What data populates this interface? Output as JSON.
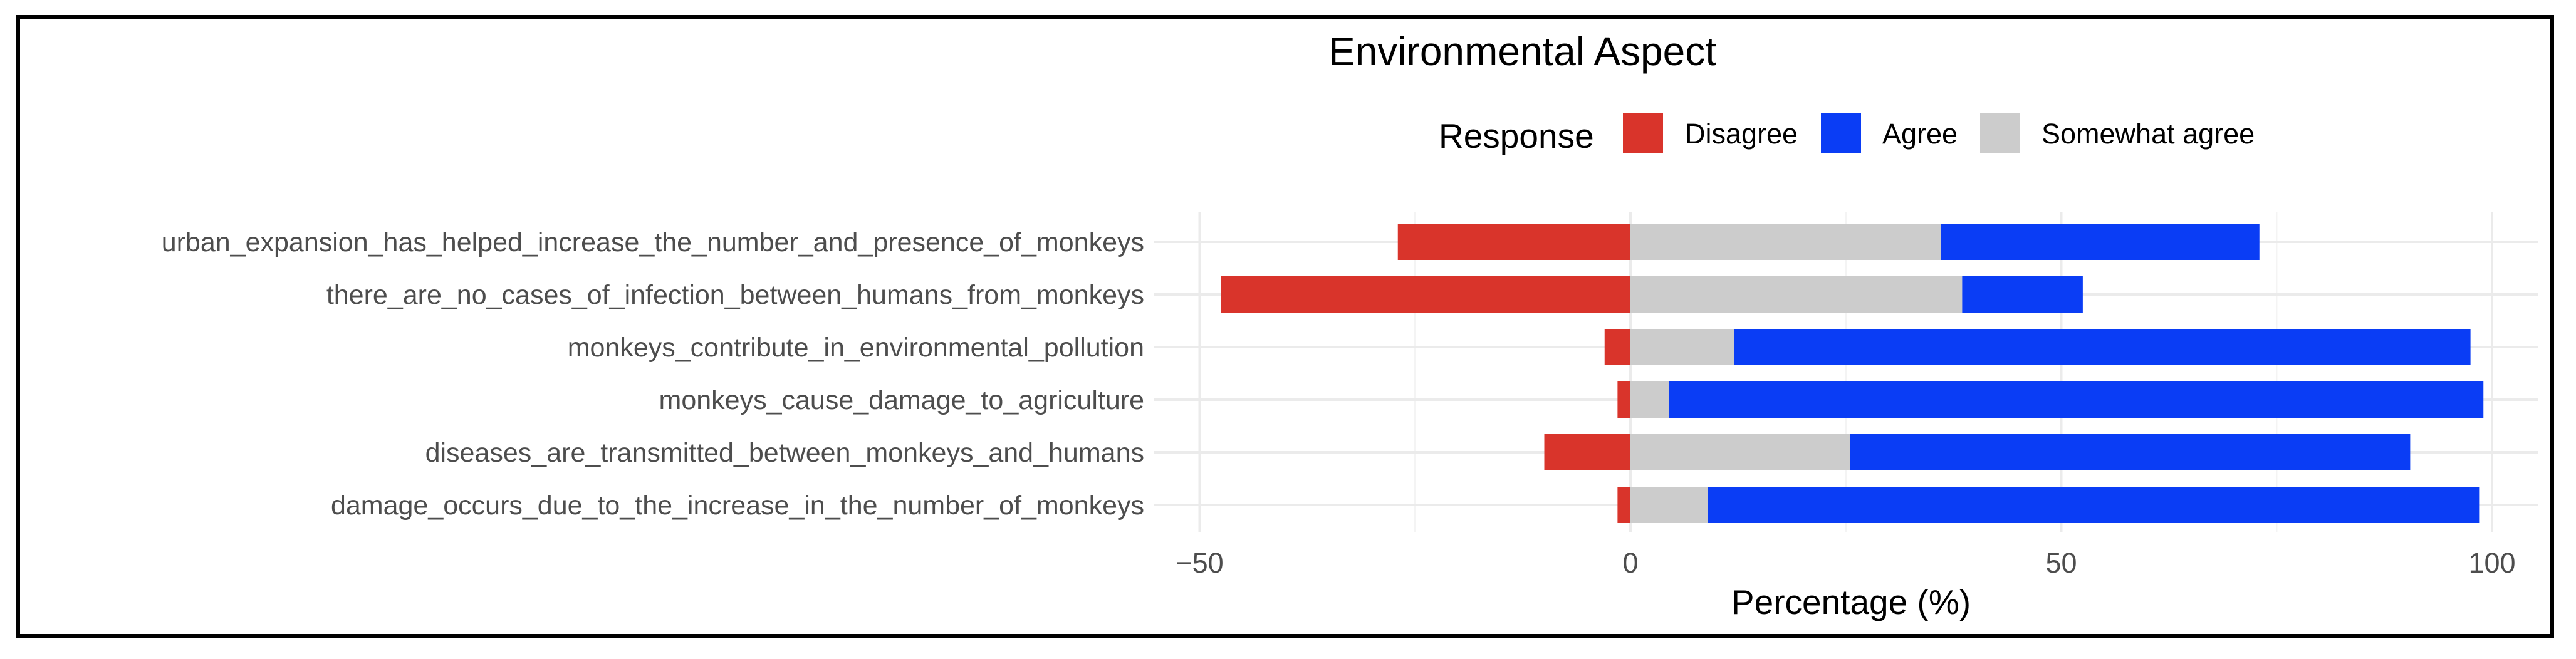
{
  "chart_data": {
    "type": "bar",
    "orientation": "horizontal",
    "stacked": "diverging",
    "title": "Environmental Aspect",
    "xlabel": "Percentage (%)",
    "ylabel": "",
    "xlim": [
      -50,
      100
    ],
    "x_ticks": [
      -50,
      0,
      50,
      100
    ],
    "x_tick_labels": [
      "−50",
      "0",
      "50",
      "100"
    ],
    "grid": true,
    "legend": {
      "title": "Response",
      "position": "top",
      "entries": [
        {
          "label": "Disagree",
          "color": "#d9342b"
        },
        {
          "label": "Agree",
          "color": "#0a3df5"
        },
        {
          "label": "Somewhat agree",
          "color": "#cccccc"
        }
      ]
    },
    "categories": [
      "urban_expansion_has_helped_increase_the_number_and_presence_of_monkeys",
      "there_are_no_cases_of_infection_between_humans_from_monkeys",
      "monkeys_contribute_in_environmental_pollution",
      "monkeys_cause_damage_to_agriculture",
      "diseases_are_transmitted_between_monkeys_and_humans",
      "damage_occurs_due_to_the_increase_in_the_number_of_monkeys"
    ],
    "series": [
      {
        "name": "Disagree",
        "color": "#d9342b",
        "values": [
          -27,
          -47.5,
          -3,
          -1.5,
          -10,
          -1.5
        ]
      },
      {
        "name": "Somewhat agree",
        "color": "#cccccc",
        "values": [
          36,
          38.5,
          12,
          4.5,
          25.5,
          9
        ]
      },
      {
        "name": "Agree",
        "color": "#0a3df5",
        "values": [
          37,
          14,
          85.5,
          94.5,
          65,
          89.5
        ]
      }
    ]
  }
}
